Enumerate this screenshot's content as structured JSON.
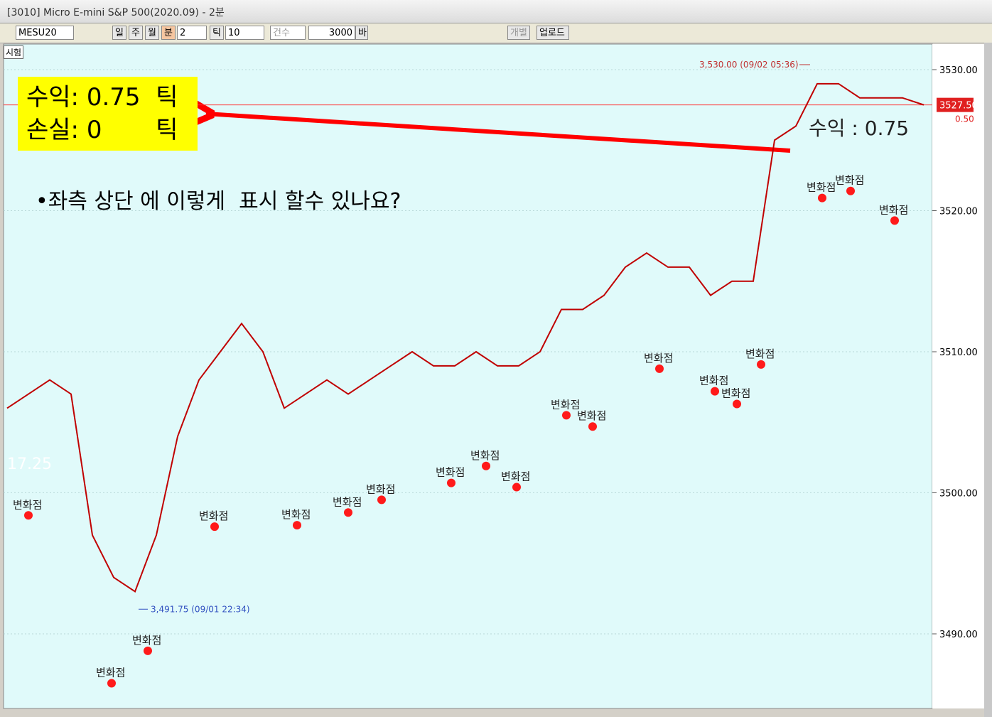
{
  "header": {
    "title": "[3010] Micro E-mini S&P 500(2020.09) - 2분"
  },
  "toolbar": {
    "symbol": "MESU20",
    "periods": [
      "일",
      "주",
      "월",
      "분"
    ],
    "interval": "2",
    "tick_label": "틱",
    "tick_value": "10",
    "count_label": "건수",
    "bars": "3000",
    "bars_unit": "바",
    "individual": "개별",
    "upload": "업로드"
  },
  "overlay": {
    "profit": "수익: 0.75  틱",
    "loss": "손실: 0       틱",
    "question": "•좌측 상단 에 이렇게  표시 할수 있나요?"
  },
  "chart": {
    "tab": "시험",
    "yticks": [
      {
        "value": 3530,
        "label": "3530.00"
      },
      {
        "value": 3520,
        "label": "3520.00"
      },
      {
        "value": 3510,
        "label": "3510.00"
      },
      {
        "value": 3500,
        "label": "3500.00"
      },
      {
        "value": 3490,
        "label": "3490.00"
      }
    ],
    "current": {
      "value": 3527.5,
      "label": "3527.50"
    },
    "change": "0.50",
    "high_label": "3,530.00 (09/02 05:36)",
    "high": 3530,
    "low_label": "3,491.75 (09/01 22:34)",
    "low": 3491.75,
    "side_value": "17.25",
    "chart_profit": "수익 : 0.75",
    "close": {
      "color": "#c00000",
      "values": [
        3506,
        3507,
        3508,
        3507,
        3497,
        3494,
        3493,
        3497,
        3504,
        3508,
        3510,
        3512,
        3510,
        3506,
        3507,
        3508,
        3507,
        3508,
        3509,
        3510,
        3509,
        3509,
        3510,
        3509,
        3509,
        3510,
        3513,
        3513,
        3514,
        3516,
        3517,
        3516,
        3516,
        3514,
        3515,
        3515,
        3525,
        3526,
        3529,
        3529,
        3528,
        3528,
        3528,
        3527.5
      ]
    },
    "change_points": [
      {
        "label": "변화점",
        "value": 3498.4
      },
      {
        "label": "변화점",
        "value": 3486.5
      },
      {
        "label": "변화점",
        "value": 3488.8
      },
      {
        "label": "변화점",
        "value": 3497.6
      },
      {
        "label": "변화점",
        "value": 3497.7
      },
      {
        "label": "변화점",
        "value": 3498.6
      },
      {
        "label": "변화점",
        "value": 3499.5
      },
      {
        "label": "변화점",
        "value": 3500.7
      },
      {
        "label": "변화점",
        "value": 3501.9
      },
      {
        "label": "변화점",
        "value": 3500.4
      },
      {
        "label": "변화점",
        "value": 3505.5
      },
      {
        "label": "변화점",
        "value": 3504.7
      },
      {
        "label": "변화점",
        "value": 3508.8
      },
      {
        "label": "변화점",
        "value": 3507.2
      },
      {
        "label": "변화점",
        "value": 3506.3
      },
      {
        "label": "변화점",
        "value": 3509.1
      },
      {
        "label": "변화점",
        "value": 3520.9
      },
      {
        "label": "변화점",
        "value": 3521.4
      },
      {
        "label": "변화점",
        "value": 3519.3
      }
    ]
  }
}
